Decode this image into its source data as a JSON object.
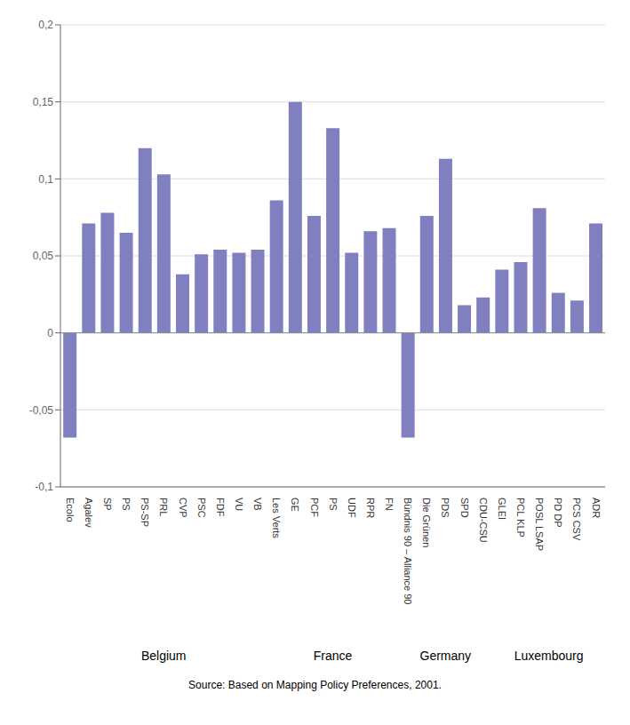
{
  "chart_data": {
    "type": "bar",
    "categories": [
      "Ecolo",
      "Agalev",
      "SP",
      "PS",
      "PS-SP",
      "PRL",
      "CVP",
      "PSC",
      "FDF",
      "VU",
      "VB",
      "Les Verts",
      "GE",
      "PCF",
      "PS",
      "UDF",
      "RPR",
      "FN",
      "Bündnis 90 – Alliance 90",
      "Die Grünen",
      "PDS",
      "SPD",
      "CDU-CSU",
      "GLEI",
      "PCL KLP",
      "POSL LSAP",
      "PD DP",
      "PCS CSV",
      "ADR"
    ],
    "values": [
      -0.068,
      0.071,
      0.078,
      0.065,
      0.12,
      0.103,
      0.038,
      0.051,
      0.054,
      0.052,
      0.054,
      0.086,
      0.15,
      0.076,
      0.133,
      0.052,
      0.066,
      0.068,
      -0.068,
      0.076,
      0.113,
      0.018,
      0.023,
      0.041,
      0.046,
      0.081,
      0.026,
      0.021,
      0.071
    ],
    "color": "#8080c0",
    "ylim": [
      -0.1,
      0.2
    ],
    "yticks": [
      {
        "value": -0.1,
        "label": "-0,1"
      },
      {
        "value": -0.05,
        "label": "-0,05"
      },
      0,
      {
        "value": 0.05,
        "label": "0,05"
      },
      {
        "value": 0.1,
        "label": "0,1"
      },
      {
        "value": 0.15,
        "label": "0,15"
      },
      {
        "value": 0.2,
        "label": "0,2"
      }
    ],
    "grid": true,
    "groups": [
      {
        "name": "Belgium",
        "start": 0,
        "end": 10
      },
      {
        "name": "France",
        "start": 11,
        "end": 17
      },
      {
        "name": "Germany",
        "start": 18,
        "end": 22
      },
      {
        "name": "Luxembourg",
        "start": 23,
        "end": 28
      }
    ],
    "annotations": [
      "Source: Based on Mapping Policy Preferences, 2001."
    ]
  }
}
